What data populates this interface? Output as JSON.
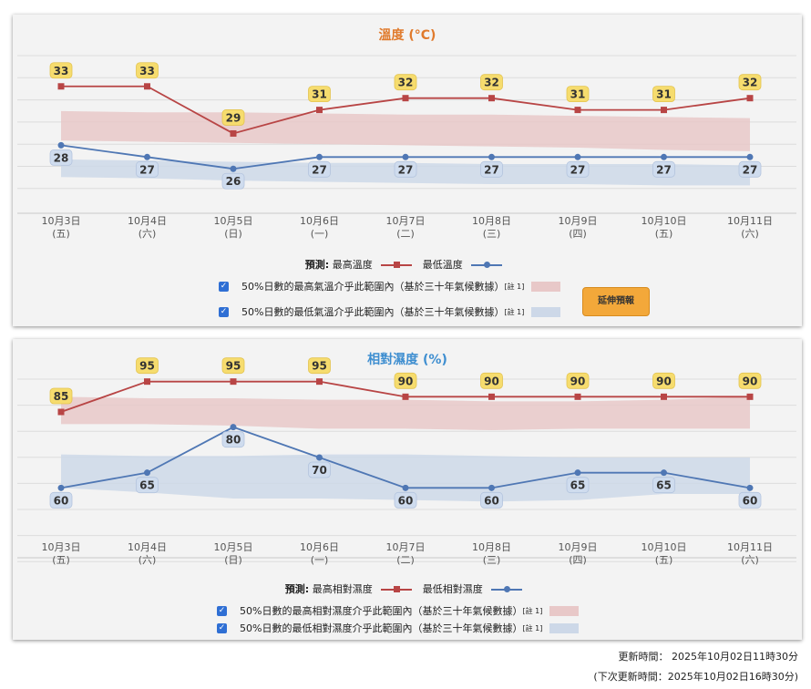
{
  "dates": [
    "10月3日",
    "10月4日",
    "10月5日",
    "10月6日",
    "10月7日",
    "10月8日",
    "10月9日",
    "10月10日",
    "10月11日"
  ],
  "weekdays": [
    "(五)",
    "(六)",
    "(日)",
    "(一)",
    "(二)",
    "(三)",
    "(四)",
    "(五)",
    "(六)"
  ],
  "temp_panel": {
    "title": "溫度 (°C)",
    "legend_prefix": "預測:",
    "legend_max": "最高溫度",
    "legend_min": "最低溫度",
    "band_max_label": "50%日數的最高氣溫介乎此範圍內（基於三十年氣候數據）",
    "band_min_label": "50%日數的最低氣溫介乎此範圍內（基於三十年氣候數據）",
    "note_mark": "[註 1]",
    "extend_button": "延伸預報"
  },
  "hum_panel": {
    "title": "相對濕度 (%)",
    "legend_prefix": "預測:",
    "legend_max": "最高相對濕度",
    "legend_min": "最低相對濕度",
    "band_max_label": "50%日數的最高相對濕度介乎此範圍內（基於三十年氣候數據）",
    "band_min_label": "50%日數的最低相對濕度介乎此範圍內（基於三十年氣候數據）",
    "note_mark": "[註 1]"
  },
  "update_time": "更新時間： 2025年10月02日11時30分",
  "next_update_time": "(下次更新時間：2025年10月02日16時30分)",
  "colors": {
    "max_line": "#b84545",
    "min_line": "#4f77b4",
    "max_band": "#e8c8c8",
    "min_band": "#cdd8e8",
    "max_badge": "#f6dc6e",
    "min_badge": "#cfdcee",
    "temp_title": "#e07a2c",
    "hum_title": "#3e8ed0"
  },
  "chart_data": [
    {
      "type": "line",
      "title": "溫度 (°C)",
      "categories": [
        "10月3日",
        "10月4日",
        "10月5日",
        "10月6日",
        "10月7日",
        "10月8日",
        "10月9日",
        "10月10日",
        "10月11日"
      ],
      "series": [
        {
          "name": "最高溫度",
          "values": [
            33,
            33,
            29,
            31,
            32,
            32,
            31,
            31,
            32
          ]
        },
        {
          "name": "最低溫度",
          "values": [
            28,
            27,
            26,
            27,
            27,
            27,
            27,
            27,
            27
          ]
        }
      ],
      "bands": [
        {
          "upper": [
            30.9,
            30.8,
            30.8,
            30.7,
            30.6,
            30.6,
            30.5,
            30.4,
            30.3
          ],
          "lower": [
            28.4,
            28.3,
            28.2,
            28.1,
            28.0,
            27.9,
            27.8,
            27.6,
            27.5
          ]
        },
        {
          "upper": [
            26.8,
            26.7,
            26.6,
            26.5,
            26.5,
            26.4,
            26.4,
            26.4,
            26.3
          ],
          "lower": [
            25.3,
            25.2,
            25.0,
            24.9,
            24.8,
            24.7,
            24.7,
            24.6,
            24.6
          ]
        }
      ],
      "ylim": [
        23,
        36
      ],
      "grid": true,
      "legend": "bottom"
    },
    {
      "type": "line",
      "title": "相對濕度 (%)",
      "categories": [
        "10月3日",
        "10月4日",
        "10月5日",
        "10月6日",
        "10月7日",
        "10月8日",
        "10月9日",
        "10月10日",
        "10月11日"
      ],
      "series": [
        {
          "name": "最高相對濕度",
          "values": [
            85,
            95,
            95,
            95,
            90,
            90,
            90,
            90,
            90
          ]
        },
        {
          "name": "最低相對濕度",
          "values": [
            60,
            65,
            80,
            70,
            60,
            60,
            65,
            65,
            60
          ]
        }
      ],
      "bands": [
        {
          "upper": [
            90,
            89.5,
            89.5,
            89,
            89,
            88.5,
            88.5,
            89,
            90
          ],
          "lower": [
            81,
            81,
            80.5,
            79.5,
            79.5,
            79,
            79.5,
            79.5,
            79.5
          ]
        },
        {
          "upper": [
            71,
            70.5,
            70.5,
            71,
            71,
            70.5,
            70,
            70,
            70
          ],
          "lower": [
            60,
            58.5,
            56.5,
            56.5,
            56,
            55.5,
            56,
            58,
            58
          ]
        }
      ],
      "ylim": [
        40,
        100
      ],
      "grid": true,
      "legend": "bottom"
    }
  ]
}
